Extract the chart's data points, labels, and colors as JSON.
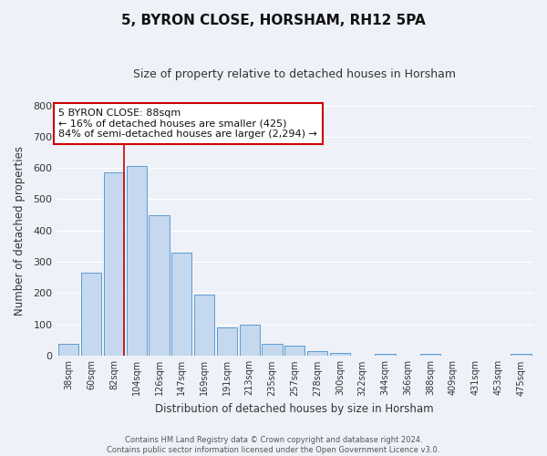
{
  "title": "5, BYRON CLOSE, HORSHAM, RH12 5PA",
  "subtitle": "Size of property relative to detached houses in Horsham",
  "xlabel": "Distribution of detached houses by size in Horsham",
  "ylabel": "Number of detached properties",
  "bar_labels": [
    "38sqm",
    "60sqm",
    "82sqm",
    "104sqm",
    "126sqm",
    "147sqm",
    "169sqm",
    "191sqm",
    "213sqm",
    "235sqm",
    "257sqm",
    "278sqm",
    "300sqm",
    "322sqm",
    "344sqm",
    "366sqm",
    "388sqm",
    "409sqm",
    "431sqm",
    "453sqm",
    "475sqm"
  ],
  "bar_values": [
    37,
    265,
    585,
    605,
    450,
    330,
    195,
    90,
    100,
    38,
    32,
    15,
    10,
    0,
    5,
    0,
    5,
    0,
    0,
    0,
    7
  ],
  "bar_color": "#c5d8ed",
  "bar_edge_color": "#5b9bd5",
  "background_color": "#eef2f8",
  "grid_color": "#ffffff",
  "property_line_color": "#cc0000",
  "annotation_line1": "5 BYRON CLOSE: 88sqm",
  "annotation_line2": "← 16% of detached houses are smaller (425)",
  "annotation_line3": "84% of semi-detached houses are larger (2,294) →",
  "annotation_box_color": "#ffffff",
  "annotation_box_edge": "#cc0000",
  "ylim": [
    0,
    800
  ],
  "yticks": [
    0,
    100,
    200,
    300,
    400,
    500,
    600,
    700,
    800
  ],
  "footer_line1": "Contains HM Land Registry data © Crown copyright and database right 2024.",
  "footer_line2": "Contains public sector information licensed under the Open Government Licence v3.0."
}
